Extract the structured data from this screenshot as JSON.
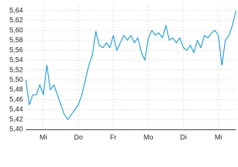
{
  "chart_data": {
    "type": "line",
    "categories": [
      null,
      null,
      null,
      null,
      null,
      "Mi",
      null,
      null,
      null,
      null,
      null,
      null,
      null,
      null,
      null,
      "Do",
      null,
      null,
      null,
      null,
      null,
      null,
      null,
      null,
      null,
      "Fr",
      null,
      null,
      null,
      null,
      null,
      null,
      null,
      null,
      null,
      "Mo",
      null,
      null,
      null,
      null,
      null,
      null,
      null,
      null,
      null,
      "Di",
      null,
      null,
      null,
      null,
      null,
      null,
      null,
      null,
      null,
      "Mi",
      null,
      null,
      null,
      null,
      null
    ],
    "series": [
      {
        "color": "#1a9bd7",
        "values": [
          5.5,
          5.45,
          5.47,
          5.47,
          5.49,
          5.47,
          5.53,
          5.48,
          5.49,
          5.47,
          5.45,
          5.43,
          5.42,
          5.43,
          5.44,
          5.45,
          5.47,
          5.5,
          5.53,
          5.55,
          5.598,
          5.57,
          5.565,
          5.575,
          5.565,
          5.59,
          5.56,
          5.575,
          5.59,
          5.58,
          5.59,
          5.575,
          5.585,
          5.555,
          5.54,
          5.585,
          5.6,
          5.59,
          5.595,
          5.585,
          5.61,
          5.58,
          5.585,
          5.575,
          5.585,
          5.565,
          5.56,
          5.57,
          5.555,
          5.58,
          5.565,
          5.59,
          5.585,
          5.595,
          5.6,
          5.59,
          5.53,
          5.58,
          5.59,
          5.61,
          5.64
        ]
      }
    ],
    "ylim": [
      5.4,
      5.653
    ],
    "yticks": [
      {
        "value": 5.4,
        "label": "5,40"
      },
      {
        "value": 5.42,
        "label": "5,42"
      },
      {
        "value": 5.44,
        "label": "5,44"
      },
      {
        "value": 5.46,
        "label": "5,46"
      },
      {
        "value": 5.48,
        "label": "5,48"
      },
      {
        "value": 5.5,
        "label": "5,50"
      },
      {
        "value": 5.52,
        "label": "5,52"
      },
      {
        "value": 5.54,
        "label": "5,54"
      },
      {
        "value": 5.56,
        "label": "5,56"
      },
      {
        "value": 5.58,
        "label": "5,58"
      },
      {
        "value": 5.6,
        "label": "5,60"
      },
      {
        "value": 5.62,
        "label": "5,62"
      },
      {
        "value": 5.64,
        "label": "5,64"
      }
    ],
    "grid": true
  }
}
